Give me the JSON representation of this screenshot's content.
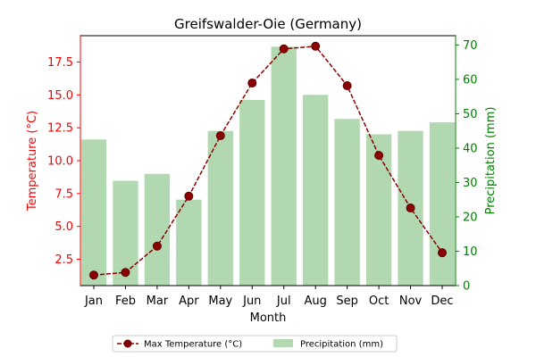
{
  "chart_data": {
    "type": "bar+line",
    "title": "Greifswalder-Oie (Germany)",
    "xlabel": "Month",
    "ylabel_left": "Temperature (°C)",
    "ylabel_right": "Precipitation (mm)",
    "categories": [
      "Jan",
      "Feb",
      "Mar",
      "Apr",
      "May",
      "Jun",
      "Jul",
      "Aug",
      "Sep",
      "Oct",
      "Nov",
      "Dec"
    ],
    "series": [
      {
        "name": "Max Temperature (°C)",
        "type": "line",
        "axis": "left",
        "values": [
          1.3,
          1.5,
          3.5,
          7.3,
          11.9,
          15.9,
          18.5,
          18.7,
          15.7,
          10.4,
          6.4,
          3.0
        ]
      },
      {
        "name": "Precipitation (mm)",
        "type": "bar",
        "axis": "right",
        "values": [
          42.5,
          30.5,
          32.5,
          25.0,
          45.0,
          54.0,
          69.5,
          55.5,
          48.5,
          44.0,
          45.0,
          47.5
        ]
      }
    ],
    "ylim_left": [
      0.5,
      19.5
    ],
    "ylim_right": [
      0,
      72.7
    ],
    "yticks_left": [
      "2.5",
      "5.0",
      "7.5",
      "10.0",
      "12.5",
      "15.0",
      "17.5"
    ],
    "yticks_right": [
      "0",
      "10",
      "20",
      "30",
      "40",
      "50",
      "60",
      "70"
    ],
    "grid": false,
    "legend_position": "bottom-center",
    "colors": {
      "line": "#8b0000",
      "marker_edge": "#5c0000",
      "bar": "#b2d8b2",
      "left_axis": "#ff0000",
      "right_axis": "#008000",
      "axis": "#000000"
    }
  }
}
